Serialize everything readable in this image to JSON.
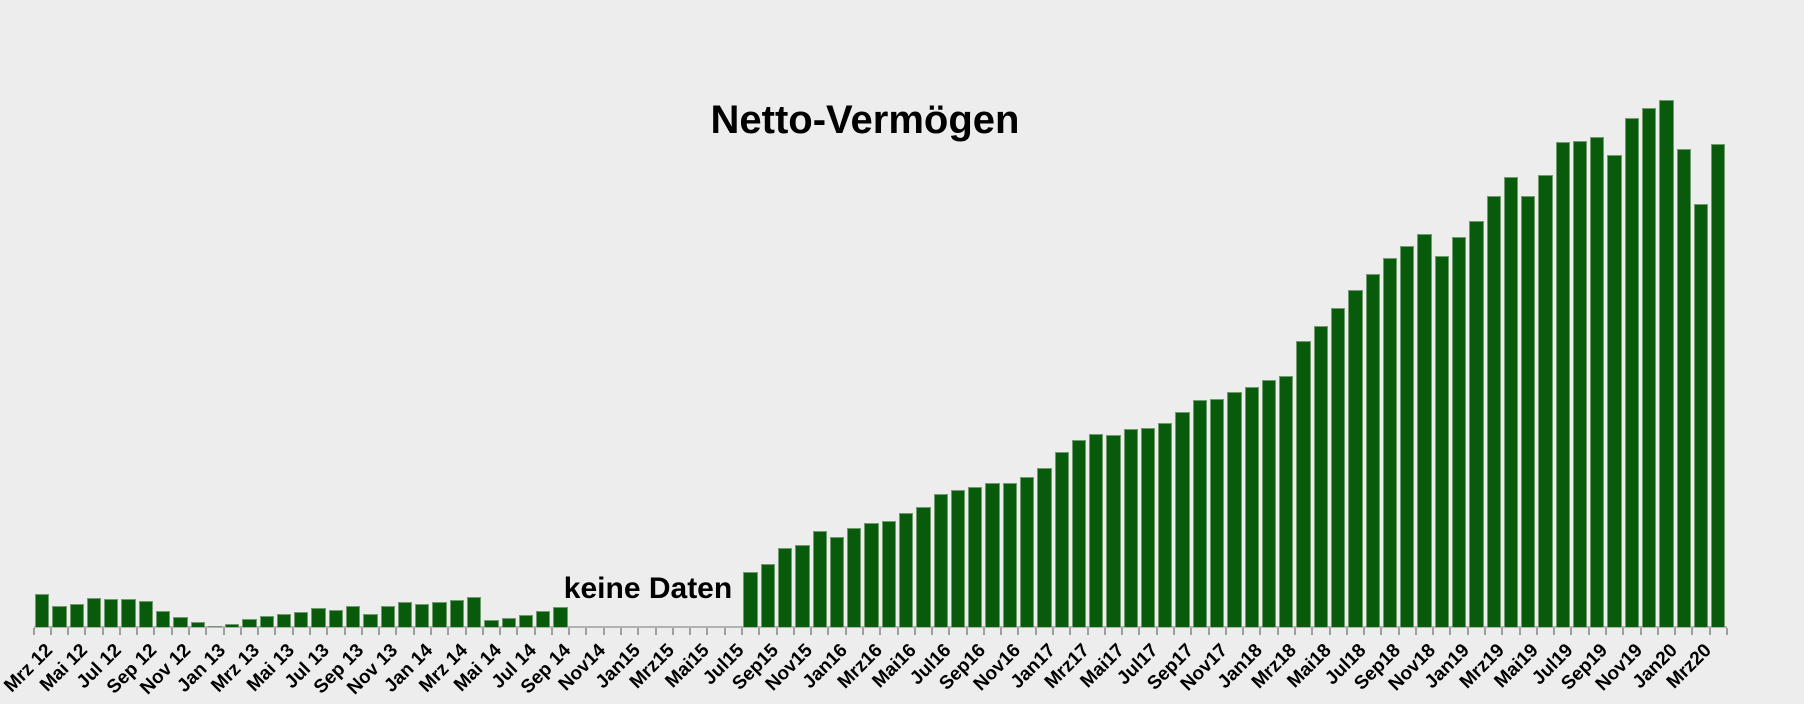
{
  "chart_data": {
    "type": "bar",
    "title": "Netto-Vermögen",
    "annotation": "keine Daten",
    "xlabel": "",
    "ylabel": "",
    "legend": null,
    "grid": false,
    "y_axis_shown": false,
    "x_axis_shown": true,
    "note": "Monthly bars Mrz 2012 - Apr 2020. No y-axis scale is shown in the source, so values are relative bar heights (pixels). null = missing months marked 'keine Daten'.",
    "colors": {
      "background": "#ededed",
      "bar_fill": "#075b0a",
      "bar_border": "#6f9b6f",
      "axis_line": "#b2b2b2",
      "tick": "#9f9f9f",
      "text": "#000000"
    },
    "x_tick_interval_months": 2,
    "x_tick_labels": [
      "Mrz 12",
      "Mai 12",
      "Jul 12",
      "Sep 12",
      "Nov 12",
      "Jan 13",
      "Mrz 13",
      "Mai 13",
      "Jul 13",
      "Sep 13",
      "Nov 13",
      "Jan 14",
      "Mrz 14",
      "Mai 14",
      "Jul 14",
      "Sep 14",
      "Nov14",
      "Jan15",
      "Mrz15",
      "Mai15",
      "Jul15",
      "Sep15",
      "Nov15",
      "Jan16",
      "Mrz16",
      "Mai16",
      "Jul16",
      "Sep16",
      "Nov16",
      "Jan17",
      "Mrz17",
      "Mai17",
      "Jul17",
      "Sep17",
      "Nov17",
      "Jan18",
      "Mrz18",
      "Mai18",
      "Jul18",
      "Sep18",
      "Nov18",
      "Jan19",
      "Mrz19",
      "Mai19",
      "Jul19",
      "Sep19",
      "Nov19",
      "Jan20",
      "Mrz20"
    ],
    "categories": [
      "Mrz 12",
      "Apr 12",
      "Mai 12",
      "Jun 12",
      "Jul 12",
      "Aug 12",
      "Sep 12",
      "Okt 12",
      "Nov 12",
      "Dez 12",
      "Jan 13",
      "Feb 13",
      "Mrz 13",
      "Apr 13",
      "Mai 13",
      "Jun 13",
      "Jul 13",
      "Aug 13",
      "Sep 13",
      "Okt 13",
      "Nov 13",
      "Dez 13",
      "Jan 14",
      "Feb 14",
      "Mrz 14",
      "Apr 14",
      "Mai 14",
      "Jun 14",
      "Jul 14",
      "Aug 14",
      "Sep 14",
      "Okt 14",
      "Nov 14",
      "Dez 14",
      "Jan 15",
      "Feb 15",
      "Mrz 15",
      "Apr 15",
      "Mai 15",
      "Jun 15",
      "Jul 15",
      "Aug 15",
      "Sep 15",
      "Okt 15",
      "Nov 15",
      "Dez 15",
      "Jan 16",
      "Feb 16",
      "Mrz 16",
      "Apr 16",
      "Mai 16",
      "Jun 16",
      "Jul 16",
      "Aug 16",
      "Sep 16",
      "Okt 16",
      "Nov 16",
      "Dez 16",
      "Jan 17",
      "Feb 17",
      "Mrz 17",
      "Apr 17",
      "Mai 17",
      "Jun 17",
      "Jul 17",
      "Aug 17",
      "Sep 17",
      "Okt 17",
      "Nov 17",
      "Dez 17",
      "Jan 18",
      "Feb 18",
      "Mrz 18",
      "Apr 18",
      "Mai 18",
      "Jun 18",
      "Jul 18",
      "Aug 18",
      "Sep 18",
      "Okt 18",
      "Nov 18",
      "Dez 18",
      "Jan 19",
      "Feb 19",
      "Mrz 19",
      "Apr 19",
      "Mai 19",
      "Jun 19",
      "Jul 19",
      "Aug 19",
      "Sep 19",
      "Okt 19",
      "Nov 19",
      "Dez 19",
      "Jan 20",
      "Feb 20",
      "Mrz 20",
      "Apr 20"
    ],
    "values": [
      33,
      21,
      23,
      29,
      28,
      28,
      26,
      16,
      10,
      5,
      1,
      3,
      8,
      11,
      13,
      15,
      19,
      17,
      21,
      13,
      21,
      25,
      23,
      25,
      27,
      30,
      7,
      9,
      12,
      16,
      20,
      null,
      null,
      null,
      null,
      null,
      null,
      null,
      null,
      null,
      null,
      55,
      63,
      79,
      82,
      96,
      90,
      99,
      104,
      106,
      114,
      120,
      133,
      137,
      140,
      144,
      144,
      150,
      159,
      175,
      187,
      193,
      192,
      198,
      199,
      204,
      215,
      227,
      228,
      235,
      240,
      247,
      251,
      286,
      301,
      319,
      337,
      353,
      369,
      381,
      393,
      371,
      390,
      406,
      431,
      450,
      431,
      452,
      485,
      486,
      490,
      472,
      509,
      519,
      527,
      478,
      423,
      483
    ]
  }
}
